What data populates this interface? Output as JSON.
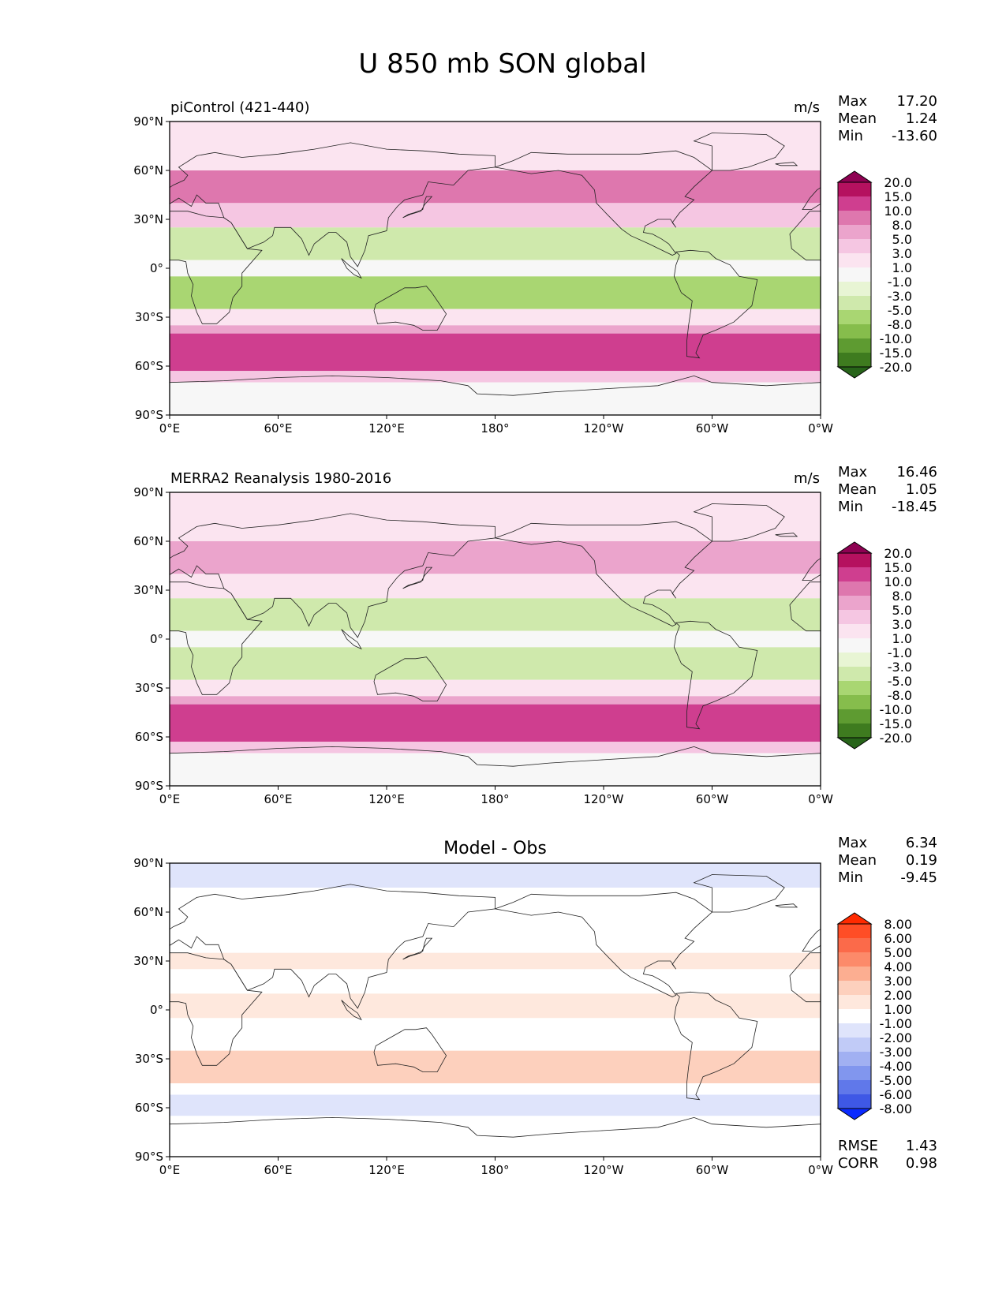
{
  "title": "U 850 mb SON global",
  "x_ticks": [
    "0°E",
    "60°E",
    "120°E",
    "180°",
    "120°W",
    "60°W",
    "0°W"
  ],
  "y_ticks": [
    "90°N",
    "60°N",
    "30°N",
    "0°",
    "30°S",
    "60°S",
    "90°S"
  ],
  "chart_data": [
    {
      "type": "heatmap",
      "title": "piControl (421-440)",
      "units": "m/s",
      "stats": [
        {
          "label": "Max",
          "value": "17.20"
        },
        {
          "label": "Mean",
          "value": "1.24"
        },
        {
          "label": "Min",
          "value": "-13.60"
        }
      ],
      "xlim": [
        0,
        360
      ],
      "ylim": [
        -90,
        90
      ],
      "colorbar": {
        "labels": [
          "20.0",
          "15.0",
          "10.0",
          "8.0",
          "5.0",
          "3.0",
          "1.0",
          "-1.0",
          "-3.0",
          "-5.0",
          "-8.0",
          "-10.0",
          "-15.0",
          "-20.0"
        ],
        "colors": [
          "#8e0152",
          "#b5115f",
          "#cf3e8f",
          "#de77ae",
          "#eba4cc",
          "#f5c6e2",
          "#fbe4f0",
          "#f7f7f7",
          "#e8f5d4",
          "#cfe9ac",
          "#a9d672",
          "#86bd4c",
          "#5e9b31",
          "#3e7b1f",
          "#276419"
        ]
      },
      "bands": [
        {
          "lat": [
            60,
            90
          ],
          "value": 1.0
        },
        {
          "lat": [
            40,
            60
          ],
          "value": 8.0
        },
        {
          "lat": [
            25,
            40
          ],
          "value": 3.0
        },
        {
          "lat": [
            5,
            25
          ],
          "value": -4.0
        },
        {
          "lat": [
            -5,
            5
          ],
          "value": 0.0
        },
        {
          "lat": [
            -25,
            -5
          ],
          "value": -6.0
        },
        {
          "lat": [
            -35,
            -25
          ],
          "value": 1.0
        },
        {
          "lat": [
            -40,
            -35
          ],
          "value": 6.0
        },
        {
          "lat": [
            -63,
            -40
          ],
          "value": 12.0
        },
        {
          "lat": [
            -70,
            -63
          ],
          "value": 4.0
        },
        {
          "lat": [
            -90,
            -70
          ],
          "value": -1.0
        }
      ]
    },
    {
      "type": "heatmap",
      "title": "MERRA2 Reanalysis 1980-2016",
      "units": "m/s",
      "stats": [
        {
          "label": "Max",
          "value": "16.46"
        },
        {
          "label": "Mean",
          "value": "1.05"
        },
        {
          "label": "Min",
          "value": "-18.45"
        }
      ],
      "xlim": [
        0,
        360
      ],
      "ylim": [
        -90,
        90
      ],
      "colorbar": {
        "labels": [
          "20.0",
          "15.0",
          "10.0",
          "8.0",
          "5.0",
          "3.0",
          "1.0",
          "-1.0",
          "-3.0",
          "-5.0",
          "-8.0",
          "-10.0",
          "-15.0",
          "-20.0"
        ],
        "colors": [
          "#8e0152",
          "#b5115f",
          "#cf3e8f",
          "#de77ae",
          "#eba4cc",
          "#f5c6e2",
          "#fbe4f0",
          "#f7f7f7",
          "#e8f5d4",
          "#cfe9ac",
          "#a9d672",
          "#86bd4c",
          "#5e9b31",
          "#3e7b1f",
          "#276419"
        ]
      },
      "bands": [
        {
          "lat": [
            60,
            90
          ],
          "value": 1.0
        },
        {
          "lat": [
            40,
            60
          ],
          "value": 6.0
        },
        {
          "lat": [
            25,
            40
          ],
          "value": 2.0
        },
        {
          "lat": [
            5,
            25
          ],
          "value": -4.0
        },
        {
          "lat": [
            -5,
            5
          ],
          "value": -1.0
        },
        {
          "lat": [
            -25,
            -5
          ],
          "value": -5.0
        },
        {
          "lat": [
            -35,
            -25
          ],
          "value": 1.0
        },
        {
          "lat": [
            -40,
            -35
          ],
          "value": 6.0
        },
        {
          "lat": [
            -63,
            -40
          ],
          "value": 12.0
        },
        {
          "lat": [
            -70,
            -63
          ],
          "value": 4.0
        },
        {
          "lat": [
            -90,
            -70
          ],
          "value": -1.0
        }
      ]
    },
    {
      "type": "heatmap",
      "title": "Model - Obs",
      "units": "",
      "stats": [
        {
          "label": "Max",
          "value": "6.34"
        },
        {
          "label": "Mean",
          "value": "0.19"
        },
        {
          "label": "Min",
          "value": "-9.45"
        }
      ],
      "footer_stats": [
        {
          "label": "RMSE",
          "value": "1.43"
        },
        {
          "label": "CORR",
          "value": "0.98"
        }
      ],
      "xlim": [
        0,
        360
      ],
      "ylim": [
        -90,
        90
      ],
      "colorbar": {
        "labels": [
          "8.00",
          "6.00",
          "5.00",
          "4.00",
          "3.00",
          "2.00",
          "1.00",
          "-1.00",
          "-2.00",
          "-3.00",
          "-4.00",
          "-5.00",
          "-6.00",
          "-8.00"
        ],
        "colors": [
          "#ff2a00",
          "#ff4d26",
          "#fb6a4a",
          "#fc8a6a",
          "#fcae91",
          "#fdd0bd",
          "#fee8dd",
          "#ffffff",
          "#dfe4fb",
          "#c1cbf7",
          "#a1b0f2",
          "#8196ee",
          "#6078ea",
          "#3e58e6",
          "#0a2aff"
        ]
      },
      "bands": [
        {
          "lat": [
            75,
            90
          ],
          "value": -1.5
        },
        {
          "lat": [
            60,
            75
          ],
          "value": 0.0
        },
        {
          "lat": [
            35,
            60
          ],
          "value": 0.0
        },
        {
          "lat": [
            25,
            35
          ],
          "value": 1.5
        },
        {
          "lat": [
            10,
            25
          ],
          "value": 0.0
        },
        {
          "lat": [
            -5,
            10
          ],
          "value": 1.5
        },
        {
          "lat": [
            -25,
            -5
          ],
          "value": 0.0
        },
        {
          "lat": [
            -45,
            -25
          ],
          "value": 2.0
        },
        {
          "lat": [
            -52,
            -45
          ],
          "value": 0.0
        },
        {
          "lat": [
            -65,
            -52
          ],
          "value": -1.5
        },
        {
          "lat": [
            -90,
            -65
          ],
          "value": 0.0
        }
      ]
    }
  ]
}
